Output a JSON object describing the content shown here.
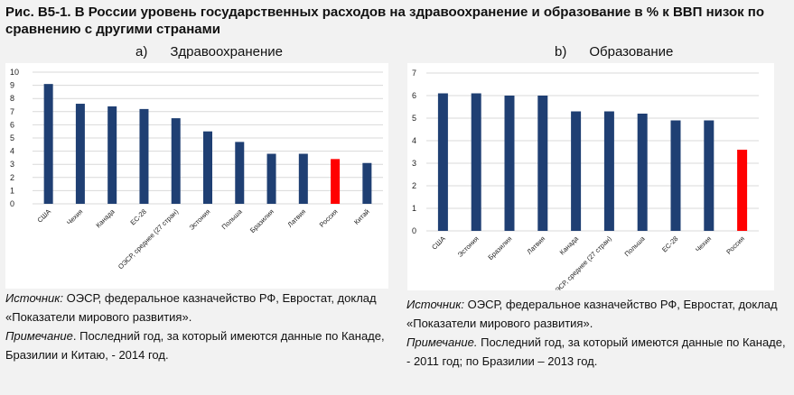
{
  "title": "Рис. В5-1. В России уровень государственных расходов на здравоохранение и образование в % к ВВП низок по сравнению с другими странами",
  "charts": [
    {
      "letter": "a)",
      "label": "Здравоохранение",
      "source_label": "Источник:",
      "source_text": " ОЭСР, федеральное казначейство РФ, Евростат, доклад «Показатели мирового развития».",
      "note_label": "Примечание",
      "note_text": ". Последний год, за который имеются данные по Канаде, Бразилии и Китаю, - 2014 год."
    },
    {
      "letter": "b)",
      "label": "Образование",
      "source_label": "Источник:",
      "source_text": " ОЭСР, федеральное казначейство РФ, Евростат, доклад «Показатели мирового развития».",
      "note_label": "Примечание.",
      "note_text": "  Последний год, за который имеются данные по Канаде, - 2011 год; по Бразилии – 2013 год."
    }
  ],
  "chart_data": [
    {
      "type": "bar",
      "title": "Здравоохранение",
      "categories": [
        "США",
        "Чехия",
        "Канада",
        "ЕС-28",
        "ОЭСР, среднее (27 стран)",
        "Эстония",
        "Польша",
        "Бразилия",
        "Латвия",
        "Россия",
        "Китай"
      ],
      "values": [
        9.1,
        7.6,
        7.4,
        7.2,
        6.5,
        5.5,
        4.7,
        3.8,
        3.8,
        3.4,
        3.1
      ],
      "yticks": [
        "0",
        "1",
        "2",
        "3",
        "4",
        "5",
        "6",
        "7",
        "8",
        "9",
        "10"
      ],
      "ylim": [
        0,
        10
      ],
      "grid": true,
      "colors": {
        "default": "#1f3f73",
        "highlight": "#ff0000"
      },
      "highlight": "Россия"
    },
    {
      "type": "bar",
      "title": "Образование",
      "categories": [
        "США",
        "Эстония",
        "Бразилия",
        "Латвия",
        "Канада",
        "ОЭСР, среднее (27 стран)",
        "Польша",
        "ЕС-28",
        "Чехия",
        "Россия"
      ],
      "values": [
        6.1,
        6.1,
        6.0,
        6.0,
        5.3,
        5.3,
        5.2,
        4.9,
        4.9,
        3.6
      ],
      "yticks": [
        "0",
        "1",
        "2",
        "3",
        "4",
        "5",
        "6",
        "7"
      ],
      "ylim": [
        0,
        7
      ],
      "grid": true,
      "colors": {
        "default": "#1f3f73",
        "highlight": "#ff0000"
      },
      "highlight": "Россия"
    }
  ]
}
